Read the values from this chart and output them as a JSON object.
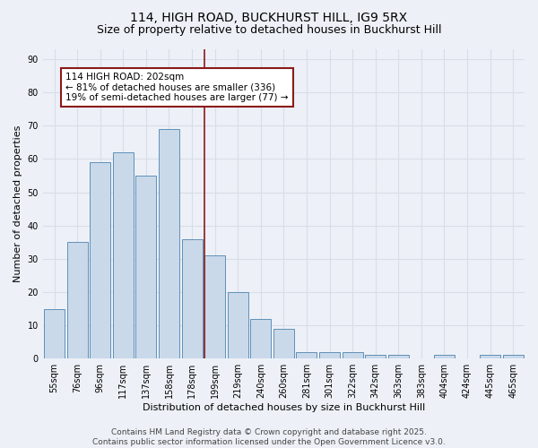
{
  "title1": "114, HIGH ROAD, BUCKHURST HILL, IG9 5RX",
  "title2": "Size of property relative to detached houses in Buckhurst Hill",
  "xlabel": "Distribution of detached houses by size in Buckhurst Hill",
  "ylabel": "Number of detached properties",
  "categories": [
    "55sqm",
    "76sqm",
    "96sqm",
    "117sqm",
    "137sqm",
    "158sqm",
    "178sqm",
    "199sqm",
    "219sqm",
    "240sqm",
    "260sqm",
    "281sqm",
    "301sqm",
    "322sqm",
    "342sqm",
    "363sqm",
    "383sqm",
    "404sqm",
    "424sqm",
    "445sqm",
    "465sqm"
  ],
  "values": [
    15,
    35,
    59,
    62,
    55,
    69,
    36,
    31,
    20,
    12,
    9,
    2,
    2,
    2,
    1,
    1,
    0,
    1,
    0,
    1,
    1
  ],
  "bar_color": "#c9d9ea",
  "bar_edge_color": "#6090b8",
  "vline_x": 7.0,
  "vline_color": "#8b1a1a",
  "annotation_text": "114 HIGH ROAD: 202sqm\n← 81% of detached houses are smaller (336)\n19% of semi-detached houses are larger (77) →",
  "annotation_box_color": "#8b1a1a",
  "annotation_text_color": "#000000",
  "annotation_bg_color": "#ffffff",
  "ylim": [
    0,
    93
  ],
  "yticks": [
    0,
    10,
    20,
    30,
    40,
    50,
    60,
    70,
    80,
    90
  ],
  "background_color": "#edf1f7",
  "grid_color": "#d8dde8",
  "footer": "Contains HM Land Registry data © Crown copyright and database right 2025.\nContains public sector information licensed under the Open Government Licence v3.0.",
  "title_fontsize": 10,
  "subtitle_fontsize": 9,
  "axis_fontsize": 8,
  "tick_fontsize": 7,
  "footer_fontsize": 6.5,
  "annotation_fontsize": 7.5
}
